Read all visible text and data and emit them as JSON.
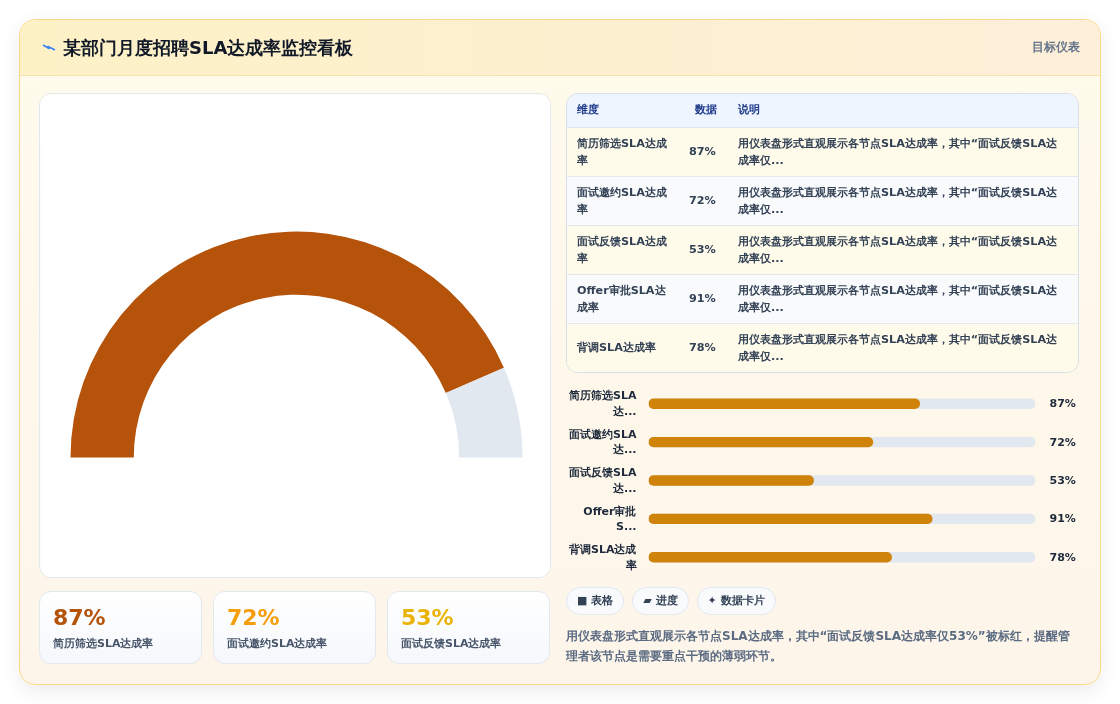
{
  "chart_data": [
    {
      "type": "donut",
      "title": "某部门月度招聘SLA达成率监控看板",
      "annotations": [
        "目标仪表"
      ],
      "categories": [
        null,
        null
      ],
      "values": [
        87,
        13
      ],
      "colors": [
        "#b45309",
        "#e2e8f0"
      ]
    },
    {
      "type": "other",
      "categories": [
        "简历筛选SLA达成率",
        "面试邀约SLA达成率",
        "面试反馈SLA达成率",
        "Offer审批SLA达成率",
        "背调SLA达成率"
      ],
      "value_labels": [
        "87%",
        "72%",
        "53%",
        "91%",
        "78%"
      ],
      "annotations": [
        "维度",
        "数据",
        "说明",
        "用仪表盘形式直观展示各节点SLA达成率，其中“面试反馈SLA达成率仅...",
        "用仪表盘形式直观展示各节点SLA达成率，其中“面试反馈SLA达成率仅...",
        "用仪表盘形式直观展示各节点SLA达成率，其中“面试反馈SLA达成率仅...",
        "用仪表盘形式直观展示各节点SLA达成率，其中“面试反馈SLA达成率仅...",
        "用仪表盘形式直观展示各节点SLA达成率，其中“面试反馈SLA达成率仅..."
      ]
    },
    {
      "type": "bar",
      "orientation": "horizontal",
      "categories": [
        "简历筛选SLA达...",
        "面试邀约SLA达...",
        "面试反馈SLA达...",
        "Offer审批S...",
        "背调SLA达成率"
      ],
      "values": [
        87,
        72,
        53,
        91,
        78
      ],
      "value_labels": [
        "87%",
        "72%",
        "53%",
        "91%",
        "78%"
      ],
      "color": "#cf8308",
      "xlim": [
        0,
        124
      ],
      "tick_labels": "y",
      "annotations": [
        "■ 表格",
        "▰ 进度",
        "✦ 数据卡片",
        "用仪表盘形式直观展示各节点SLA达成率，其中“面试反馈SLA达成率仅53%”被标红，提醒管理者该节点是需要重点干预的薄弱环节。"
      ]
    },
    {
      "type": "other",
      "categories": [
        "简历筛选SLA达成率",
        "面试邀约SLA达成率",
        "面试反馈SLA达成率"
      ],
      "value_labels": [
        "87%",
        "72%",
        "53%"
      ],
      "colors": [
        "#b45309",
        "#f59e0b",
        "#eab308"
      ]
    }
  ]
}
